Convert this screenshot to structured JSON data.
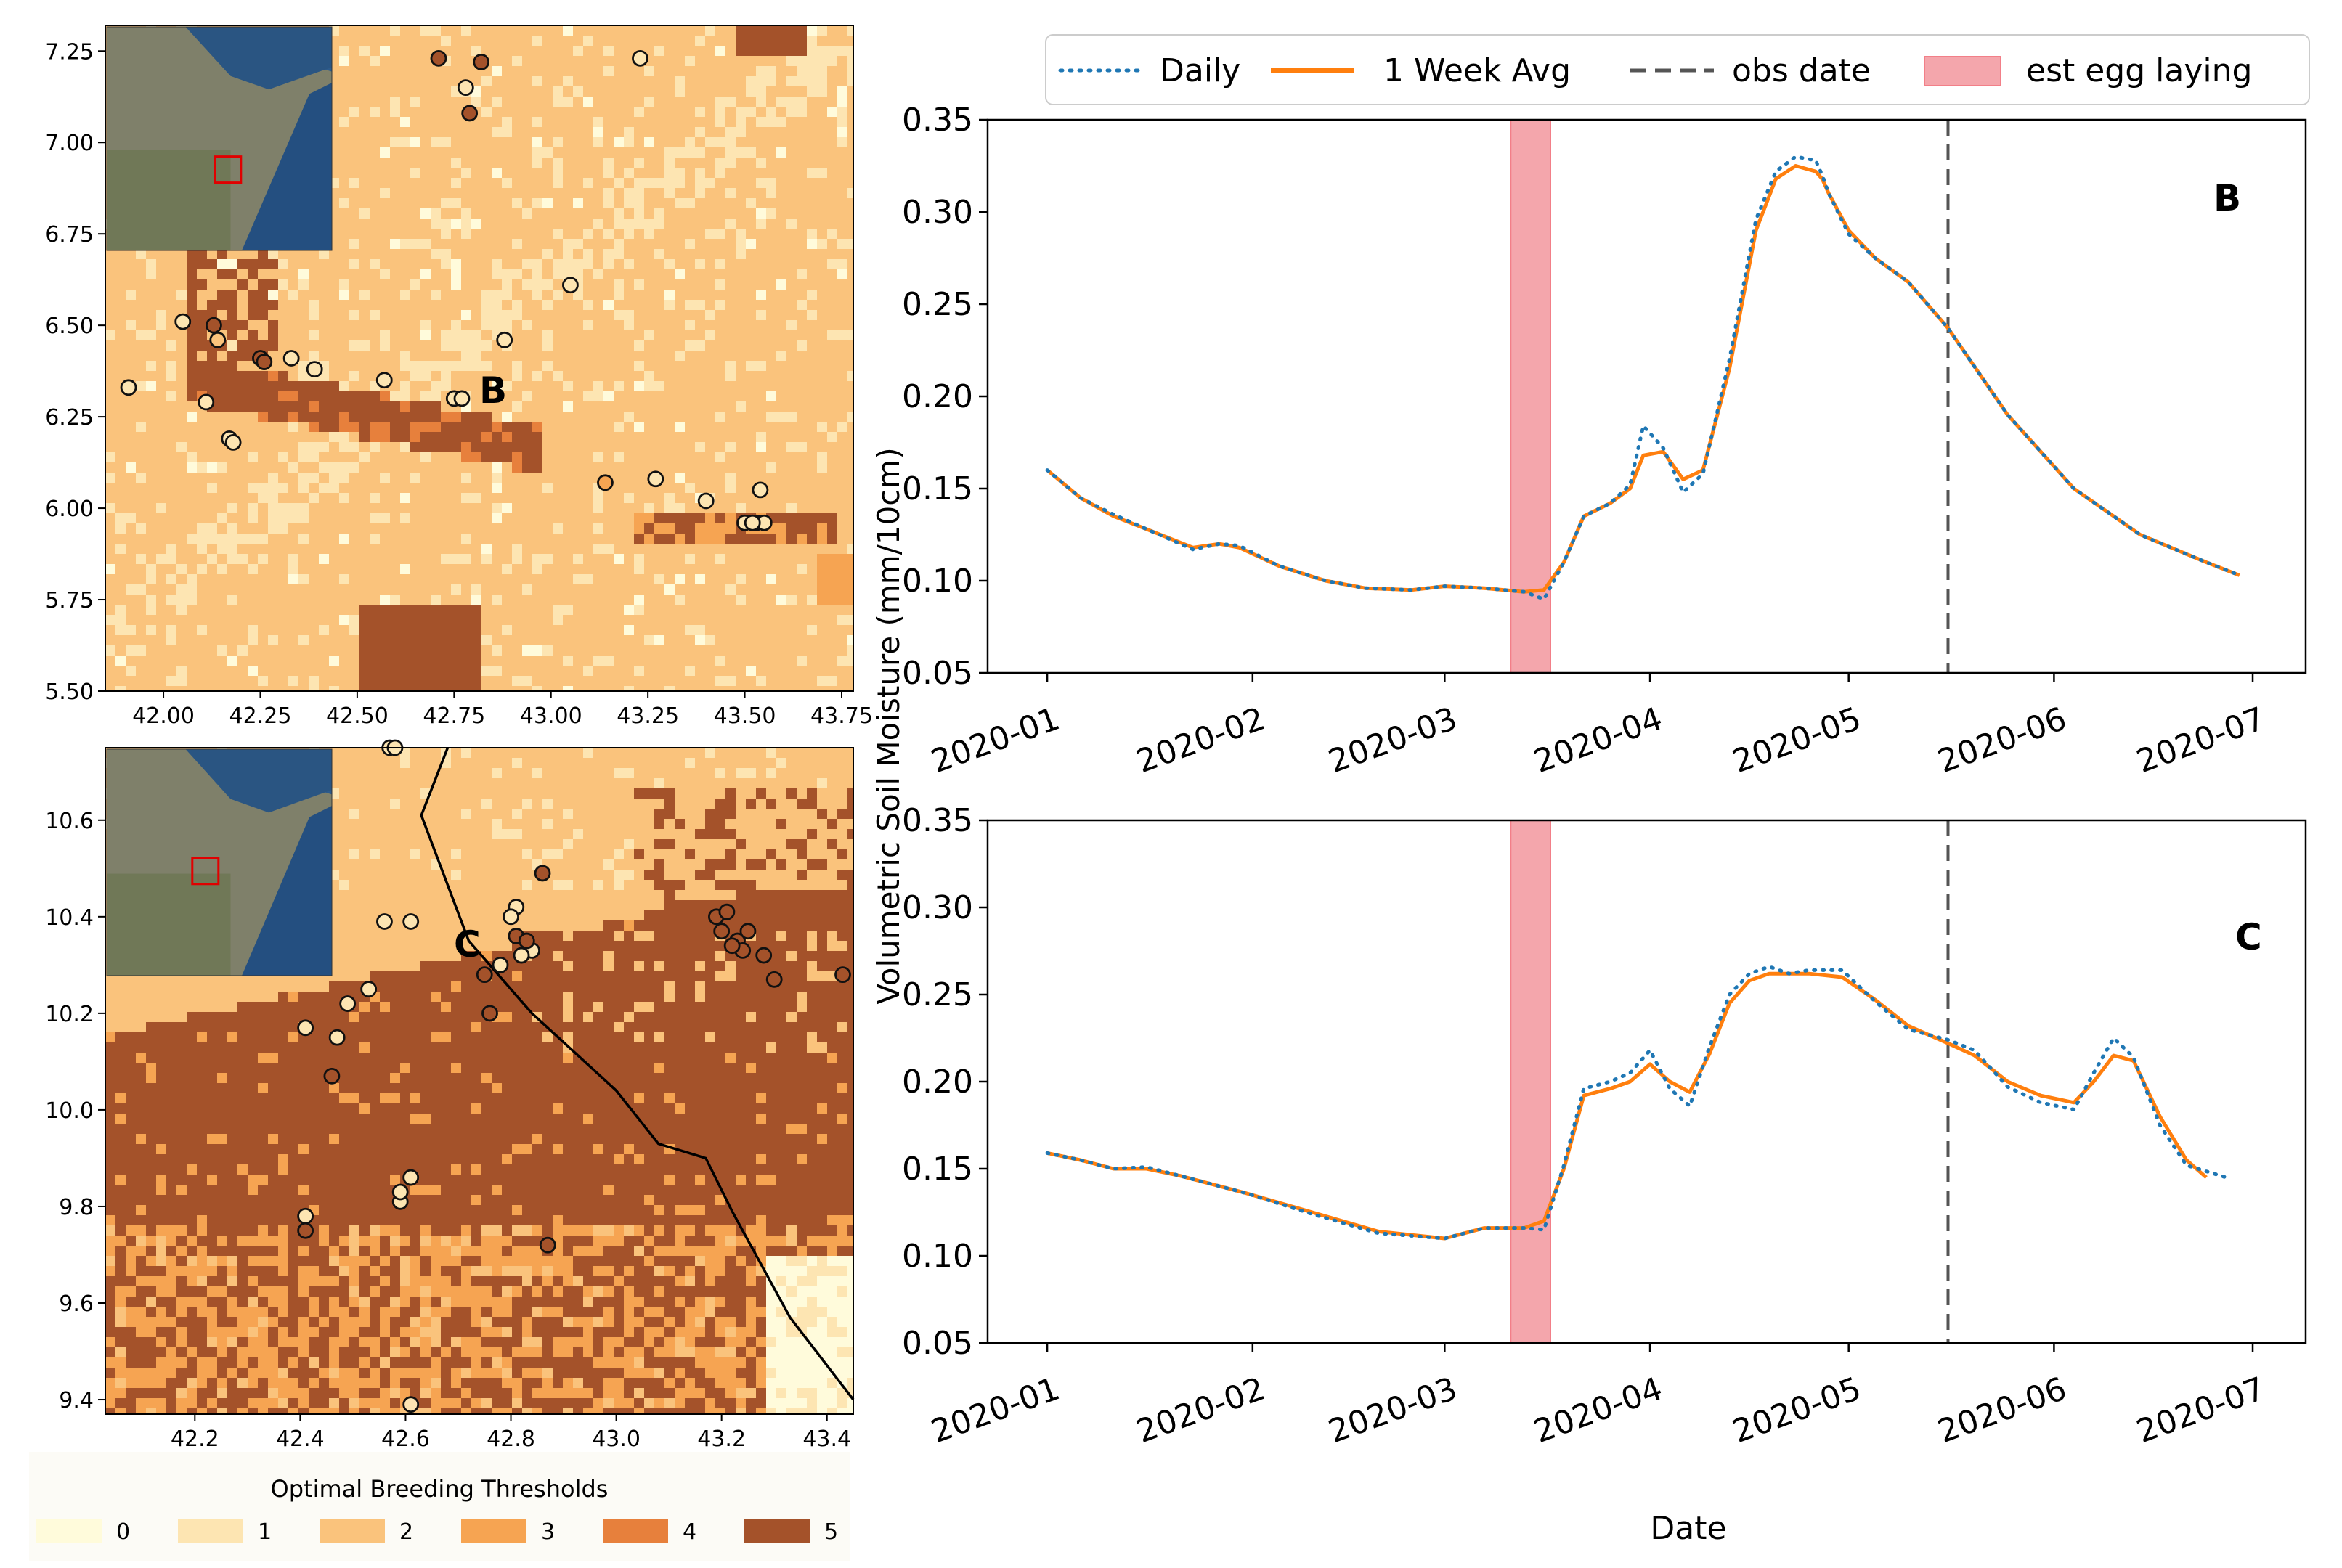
{
  "colors": {
    "thresholds": [
      "#fffbdb",
      "#fde5b2",
      "#fac37c",
      "#f6a452",
      "#e7803c",
      "#a4522a"
    ],
    "daily": "#1f77b4",
    "week_avg": "#ff7f0e",
    "obs_date": "#555555",
    "egg": "#f4a6ac"
  },
  "map_legend": {
    "title": "Optimal Breeding Thresholds",
    "labels": [
      "0",
      "1",
      "2",
      "3",
      "4",
      "5"
    ]
  },
  "line_legend": {
    "daily": "Daily",
    "week_avg": "1 Week Avg",
    "obs_date": "obs date",
    "egg": "est egg laying"
  },
  "chart_data": [
    {
      "type": "heatmap",
      "panel": "B",
      "xlim": [
        41.85,
        43.78
      ],
      "ylim": [
        5.5,
        7.32
      ],
      "xticks": [
        "42.00",
        "42.25",
        "42.50",
        "42.75",
        "43.00",
        "43.25",
        "43.50",
        "43.75"
      ],
      "yticks": [
        "5.50",
        "5.75",
        "6.00",
        "6.25",
        "6.50",
        "6.75",
        "7.00",
        "7.25"
      ],
      "points": [
        [
          42.71,
          7.23,
          5
        ],
        [
          42.82,
          7.22,
          5
        ],
        [
          42.78,
          7.15,
          1
        ],
        [
          42.79,
          7.08,
          5
        ],
        [
          43.23,
          7.23,
          1
        ],
        [
          42.05,
          6.51,
          1
        ],
        [
          42.13,
          6.5,
          5
        ],
        [
          42.14,
          6.46,
          2
        ],
        [
          42.25,
          6.41,
          5
        ],
        [
          42.26,
          6.4,
          5
        ],
        [
          42.33,
          6.41,
          1
        ],
        [
          42.39,
          6.38,
          1
        ],
        [
          42.57,
          6.35,
          1
        ],
        [
          42.88,
          6.46,
          1
        ],
        [
          43.05,
          6.61,
          1
        ],
        [
          41.91,
          6.33,
          1
        ],
        [
          42.11,
          6.29,
          1
        ],
        [
          42.17,
          6.19,
          1
        ],
        [
          42.18,
          6.18,
          1
        ],
        [
          42.75,
          6.3,
          1
        ],
        [
          42.77,
          6.3,
          1
        ],
        [
          43.14,
          6.07,
          3
        ],
        [
          43.27,
          6.08,
          1
        ],
        [
          43.4,
          6.02,
          1
        ],
        [
          43.54,
          6.05,
          1
        ],
        [
          43.5,
          5.96,
          1
        ],
        [
          43.53,
          5.96,
          1
        ],
        [
          43.55,
          5.96,
          1
        ],
        [
          43.52,
          5.96,
          1
        ]
      ]
    },
    {
      "type": "heatmap",
      "panel": "C",
      "xlim": [
        42.03,
        43.45
      ],
      "ylim": [
        9.37,
        10.75
      ],
      "xticks": [
        "42.2",
        "42.4",
        "42.6",
        "42.8",
        "43.0",
        "43.2",
        "43.4"
      ],
      "yticks": [
        "9.4",
        "9.6",
        "9.8",
        "10.0",
        "10.2",
        "10.4",
        "10.6"
      ],
      "border_lonlat": [
        [
          42.68,
          10.75
        ],
        [
          42.63,
          10.61
        ],
        [
          42.72,
          10.35
        ],
        [
          42.84,
          10.2
        ],
        [
          43.0,
          10.04
        ],
        [
          43.08,
          9.93
        ],
        [
          43.17,
          9.9
        ],
        [
          43.22,
          9.79
        ],
        [
          43.33,
          9.57
        ],
        [
          43.45,
          9.4
        ]
      ],
      "points": [
        [
          42.57,
          10.75,
          1
        ],
        [
          42.58,
          10.75,
          1
        ],
        [
          42.56,
          10.39,
          1
        ],
        [
          42.61,
          10.39,
          1
        ],
        [
          42.81,
          10.42,
          1
        ],
        [
          42.8,
          10.4,
          1
        ],
        [
          42.84,
          10.33,
          1
        ],
        [
          42.82,
          10.32,
          1
        ],
        [
          42.78,
          10.3,
          1
        ],
        [
          42.86,
          10.49,
          5
        ],
        [
          42.81,
          10.36,
          5
        ],
        [
          42.83,
          10.35,
          5
        ],
        [
          42.75,
          10.28,
          5
        ],
        [
          42.76,
          10.2,
          5
        ],
        [
          42.41,
          10.17,
          1
        ],
        [
          42.47,
          10.15,
          1
        ],
        [
          42.49,
          10.22,
          1
        ],
        [
          42.53,
          10.25,
          1
        ],
        [
          42.46,
          10.07,
          5
        ],
        [
          42.41,
          9.78,
          1
        ],
        [
          42.41,
          9.75,
          5
        ],
        [
          42.59,
          9.81,
          1
        ],
        [
          42.59,
          9.83,
          1
        ],
        [
          42.61,
          9.86,
          1
        ],
        [
          42.87,
          9.72,
          5
        ],
        [
          42.61,
          9.39,
          1
        ],
        [
          43.19,
          10.4,
          5
        ],
        [
          43.21,
          10.41,
          5
        ],
        [
          43.2,
          10.37,
          5
        ],
        [
          43.23,
          10.35,
          5
        ],
        [
          43.24,
          10.33,
          5
        ],
        [
          43.25,
          10.37,
          5
        ],
        [
          43.22,
          10.34,
          5
        ],
        [
          43.28,
          10.32,
          5
        ],
        [
          43.3,
          10.27,
          5
        ],
        [
          43.43,
          10.28,
          5
        ]
      ]
    },
    {
      "type": "line",
      "panel": "B",
      "title": "B",
      "xlabel": "Date",
      "ylabel": "Volumetric Soil Moisture (mm/10cm)",
      "ylim": [
        0.05,
        0.35
      ],
      "xlim_days": [
        -9,
        190
      ],
      "yticks": [
        "0.05",
        "0.10",
        "0.15",
        "0.20",
        "0.25",
        "0.30",
        "0.35"
      ],
      "xticks": [
        {
          "day": 0,
          "label": "2020-01"
        },
        {
          "day": 31,
          "label": "2020-02"
        },
        {
          "day": 60,
          "label": "2020-03"
        },
        {
          "day": 91,
          "label": "2020-04"
        },
        {
          "day": 121,
          "label": "2020-05"
        },
        {
          "day": 152,
          "label": "2020-06"
        },
        {
          "day": 182,
          "label": "2020-07"
        }
      ],
      "obs_day": 136,
      "egg_span_days": [
        70,
        76
      ],
      "series": [
        {
          "name": "1 Week Avg",
          "x_days": [
            0,
            5,
            10,
            15,
            22,
            26,
            29,
            35,
            42,
            48,
            55,
            60,
            66,
            72,
            75,
            78,
            81,
            85,
            88,
            90,
            93,
            96,
            99,
            103,
            107,
            110,
            113,
            116,
            117,
            118,
            121,
            125,
            130,
            136,
            145,
            155,
            165,
            175,
            180
          ],
          "values": [
            0.16,
            0.145,
            0.135,
            0.128,
            0.118,
            0.12,
            0.118,
            0.108,
            0.1,
            0.096,
            0.095,
            0.097,
            0.096,
            0.094,
            0.095,
            0.11,
            0.135,
            0.142,
            0.15,
            0.168,
            0.17,
            0.155,
            0.16,
            0.215,
            0.29,
            0.318,
            0.325,
            0.322,
            0.318,
            0.31,
            0.29,
            0.275,
            0.262,
            0.237,
            0.19,
            0.15,
            0.125,
            0.11,
            0.103
          ]
        },
        {
          "name": "Daily",
          "x_days": [
            0,
            5,
            10,
            15,
            22,
            26,
            29,
            35,
            42,
            48,
            55,
            60,
            66,
            72,
            75,
            78,
            81,
            85,
            88,
            90,
            93,
            96,
            99,
            103,
            107,
            110,
            113,
            116,
            117,
            118,
            121,
            125,
            130,
            136,
            145,
            155,
            165,
            175,
            180
          ],
          "values": [
            0.16,
            0.145,
            0.136,
            0.128,
            0.117,
            0.12,
            0.119,
            0.108,
            0.1,
            0.096,
            0.095,
            0.097,
            0.096,
            0.094,
            0.09,
            0.11,
            0.135,
            0.142,
            0.152,
            0.184,
            0.172,
            0.148,
            0.158,
            0.22,
            0.296,
            0.322,
            0.33,
            0.328,
            0.32,
            0.31,
            0.288,
            0.275,
            0.262,
            0.237,
            0.19,
            0.15,
            0.125,
            0.11,
            0.103
          ]
        }
      ]
    },
    {
      "type": "line",
      "panel": "C",
      "title": "C",
      "xlabel": "Date",
      "ylabel": "Volumetric Soil Moisture (mm/10cm)",
      "ylim": [
        0.05,
        0.35
      ],
      "xlim_days": [
        -9,
        190
      ],
      "yticks": [
        "0.05",
        "0.10",
        "0.15",
        "0.20",
        "0.25",
        "0.30",
        "0.35"
      ],
      "xticks": [
        {
          "day": 0,
          "label": "2020-01"
        },
        {
          "day": 31,
          "label": "2020-02"
        },
        {
          "day": 60,
          "label": "2020-03"
        },
        {
          "day": 91,
          "label": "2020-04"
        },
        {
          "day": 121,
          "label": "2020-05"
        },
        {
          "day": 152,
          "label": "2020-06"
        },
        {
          "day": 182,
          "label": "2020-07"
        }
      ],
      "obs_day": 136,
      "egg_span_days": [
        70,
        76
      ],
      "series": [
        {
          "name": "1 Week Avg",
          "x_days": [
            0,
            5,
            10,
            15,
            20,
            30,
            40,
            50,
            60,
            66,
            72,
            75,
            78,
            81,
            85,
            88,
            91,
            94,
            97,
            100,
            103,
            106,
            109,
            112,
            115,
            120,
            125,
            130,
            136,
            140,
            145,
            150,
            155,
            158,
            161,
            164,
            168,
            172,
            175
          ],
          "values": [
            0.159,
            0.155,
            0.15,
            0.15,
            0.146,
            0.136,
            0.125,
            0.114,
            0.11,
            0.116,
            0.116,
            0.12,
            0.15,
            0.192,
            0.196,
            0.2,
            0.21,
            0.2,
            0.194,
            0.216,
            0.245,
            0.258,
            0.262,
            0.262,
            0.262,
            0.26,
            0.247,
            0.232,
            0.222,
            0.215,
            0.2,
            0.192,
            0.188,
            0.2,
            0.215,
            0.212,
            0.18,
            0.155,
            0.145
          ]
        },
        {
          "name": "Daily",
          "x_days": [
            0,
            5,
            10,
            15,
            20,
            30,
            40,
            50,
            60,
            66,
            72,
            75,
            78,
            81,
            85,
            88,
            91,
            94,
            97,
            100,
            103,
            106,
            109,
            112,
            115,
            120,
            125,
            130,
            136,
            140,
            145,
            150,
            155,
            158,
            161,
            164,
            168,
            172,
            178
          ],
          "values": [
            0.159,
            0.155,
            0.15,
            0.151,
            0.146,
            0.136,
            0.124,
            0.113,
            0.11,
            0.116,
            0.116,
            0.115,
            0.152,
            0.196,
            0.2,
            0.205,
            0.218,
            0.196,
            0.186,
            0.22,
            0.25,
            0.262,
            0.266,
            0.262,
            0.264,
            0.264,
            0.246,
            0.23,
            0.224,
            0.218,
            0.197,
            0.188,
            0.184,
            0.205,
            0.225,
            0.214,
            0.175,
            0.152,
            0.145
          ]
        }
      ]
    }
  ]
}
